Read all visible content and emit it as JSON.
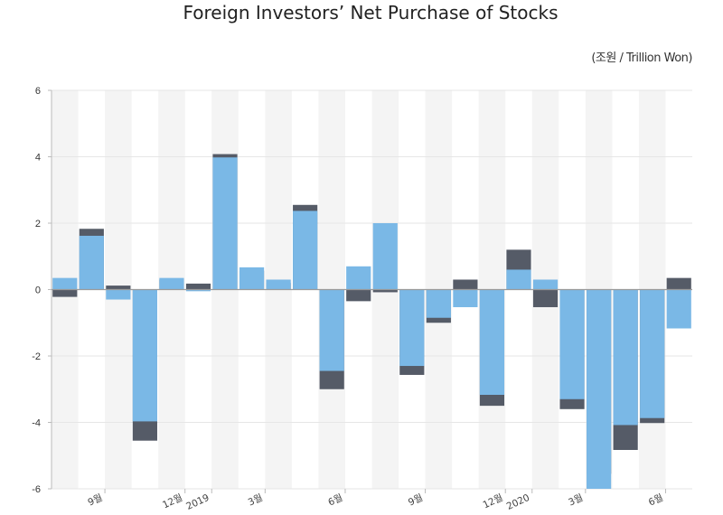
{
  "chart_data": {
    "type": "bar",
    "title": "Foreign Investors’ Net Purchase of Stocks",
    "unit": "(조원 / Trillion Won)",
    "ylim": [
      -6,
      6
    ],
    "yticks": [
      6,
      4,
      2,
      0,
      -2,
      -4,
      -6
    ],
    "grid": true,
    "x_tick_labels": [
      {
        "index": 2,
        "label": "9월"
      },
      {
        "index": 5,
        "label": "12월"
      },
      {
        "index": 6,
        "label": "2019"
      },
      {
        "index": 8,
        "label": "3월"
      },
      {
        "index": 11,
        "label": "6월"
      },
      {
        "index": 14,
        "label": "9월"
      },
      {
        "index": 17,
        "label": "12월"
      },
      {
        "index": 18,
        "label": "2020"
      },
      {
        "index": 20,
        "label": "3월"
      },
      {
        "index": 23,
        "label": "6월"
      }
    ],
    "series": [
      {
        "values": [
          0.35,
          1.62,
          -0.3,
          -3.97,
          0.35,
          -0.05,
          3.98,
          0.67,
          0.3,
          2.37,
          -2.45,
          0.7,
          2.0,
          -2.3,
          -0.85,
          -0.53,
          -3.17,
          0.6,
          0.3,
          -3.3,
          -6.0,
          -4.08,
          -3.87,
          -1.17
        ],
        "color": "#7ab8e6"
      },
      {
        "values": [
          -0.22,
          1.83,
          0.12,
          -4.55,
          0.3,
          0.18,
          4.08,
          0.57,
          0.2,
          2.55,
          -3.0,
          -0.35,
          -0.08,
          -2.57,
          -1.0,
          0.3,
          -3.5,
          1.2,
          -0.53,
          -3.6,
          -5.55,
          -4.83,
          -4.02,
          0.35
        ],
        "color": "#555b67"
      }
    ]
  }
}
